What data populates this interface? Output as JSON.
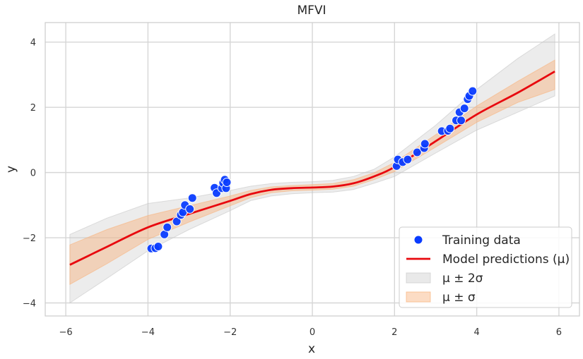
{
  "chart_data": {
    "type": "line",
    "title": "MFVI",
    "xlabel": "x",
    "ylabel": "y",
    "xlim": [
      -6.5,
      6.5
    ],
    "ylim": [
      -4.4,
      4.6
    ],
    "xticks": [
      -6,
      -4,
      -2,
      0,
      2,
      4,
      6
    ],
    "yticks": [
      -4,
      -2,
      0,
      2,
      4
    ],
    "xtick_labels": [
      "−6",
      "−4",
      "−2",
      "0",
      "2",
      "4",
      "6"
    ],
    "ytick_labels": [
      "−4",
      "−2",
      "0",
      "2",
      "4"
    ],
    "grid": true,
    "legend_position": "bottom-right",
    "series": [
      {
        "name": "Training data",
        "kind": "scatter",
        "color": "#0a3cff",
        "points": [
          [
            -3.92,
            -2.33
          ],
          [
            -3.82,
            -2.32
          ],
          [
            -3.75,
            -2.27
          ],
          [
            -3.6,
            -1.9
          ],
          [
            -3.53,
            -1.68
          ],
          [
            -3.3,
            -1.5
          ],
          [
            -3.2,
            -1.3
          ],
          [
            -3.15,
            -1.22
          ],
          [
            -3.1,
            -1.0
          ],
          [
            -2.98,
            -1.12
          ],
          [
            -2.92,
            -0.78
          ],
          [
            -2.38,
            -0.47
          ],
          [
            -2.33,
            -0.63
          ],
          [
            -2.2,
            -0.48
          ],
          [
            -2.17,
            -0.32
          ],
          [
            -2.13,
            -0.22
          ],
          [
            -2.1,
            -0.48
          ],
          [
            -2.08,
            -0.3
          ],
          [
            2.05,
            0.2
          ],
          [
            2.08,
            0.4
          ],
          [
            2.2,
            0.32
          ],
          [
            2.32,
            0.4
          ],
          [
            2.55,
            0.62
          ],
          [
            2.72,
            0.75
          ],
          [
            2.74,
            0.88
          ],
          [
            3.15,
            1.27
          ],
          [
            3.3,
            1.28
          ],
          [
            3.35,
            1.35
          ],
          [
            3.5,
            1.6
          ],
          [
            3.58,
            1.85
          ],
          [
            3.62,
            1.6
          ],
          [
            3.7,
            1.97
          ],
          [
            3.78,
            2.25
          ],
          [
            3.82,
            2.35
          ],
          [
            3.9,
            2.5
          ]
        ]
      },
      {
        "name": "Model predictions (μ)",
        "kind": "line",
        "color": "#e8080e",
        "x": [
          -5.9,
          -5,
          -4,
          -3,
          -2,
          -1.5,
          -1,
          -0.5,
          0,
          0.5,
          1,
          1.5,
          2,
          3,
          4,
          5,
          5.9
        ],
        "y": [
          -2.83,
          -2.28,
          -1.68,
          -1.27,
          -0.87,
          -0.66,
          -0.53,
          -0.48,
          -0.46,
          -0.43,
          -0.33,
          -0.12,
          0.17,
          0.96,
          1.78,
          2.45,
          3.1
        ]
      },
      {
        "name": "μ ± 2σ",
        "kind": "band",
        "color": "#c8c8c8",
        "x": [
          -5.9,
          -5,
          -4,
          -3,
          -2,
          -1.5,
          -1,
          -0.5,
          0,
          0.5,
          1,
          1.5,
          2,
          3,
          4,
          5,
          5.9
        ],
        "lower": [
          -4.0,
          -3.25,
          -2.4,
          -1.75,
          -1.17,
          -0.86,
          -0.72,
          -0.65,
          -0.62,
          -0.6,
          -0.52,
          -0.33,
          -0.12,
          0.6,
          1.3,
          1.85,
          2.35
        ],
        "upper": [
          -1.9,
          -1.4,
          -0.95,
          -0.78,
          -0.55,
          -0.42,
          -0.34,
          -0.3,
          -0.28,
          -0.24,
          -0.12,
          0.1,
          0.48,
          1.45,
          2.55,
          3.5,
          4.25
        ]
      },
      {
        "name": "μ ± σ",
        "kind": "band",
        "color": "#f9b27c",
        "x": [
          -5.9,
          -5,
          -4,
          -3,
          -2,
          -1.5,
          -1,
          -0.5,
          0,
          0.5,
          1,
          1.5,
          2,
          3,
          4,
          5,
          5.9
        ],
        "lower": [
          -3.43,
          -2.8,
          -2.05,
          -1.52,
          -1.02,
          -0.77,
          -0.62,
          -0.56,
          -0.54,
          -0.51,
          -0.42,
          -0.22,
          0.03,
          0.78,
          1.54,
          2.15,
          2.55
        ],
        "upper": [
          -2.22,
          -1.75,
          -1.32,
          -1.02,
          -0.72,
          -0.55,
          -0.44,
          -0.4,
          -0.37,
          -0.34,
          -0.22,
          -0.01,
          0.31,
          1.16,
          2.04,
          2.8,
          3.45
        ]
      }
    ],
    "legend": [
      {
        "label": "Training data",
        "marker": "dot",
        "color": "#0a3cff"
      },
      {
        "label": "Model predictions (μ)",
        "marker": "line",
        "color": "#e8080e"
      },
      {
        "label": "μ ± 2σ",
        "marker": "patch",
        "color": "#c8c8c8"
      },
      {
        "label": "μ ± σ",
        "marker": "patch",
        "color": "#f9b27c"
      }
    ]
  }
}
